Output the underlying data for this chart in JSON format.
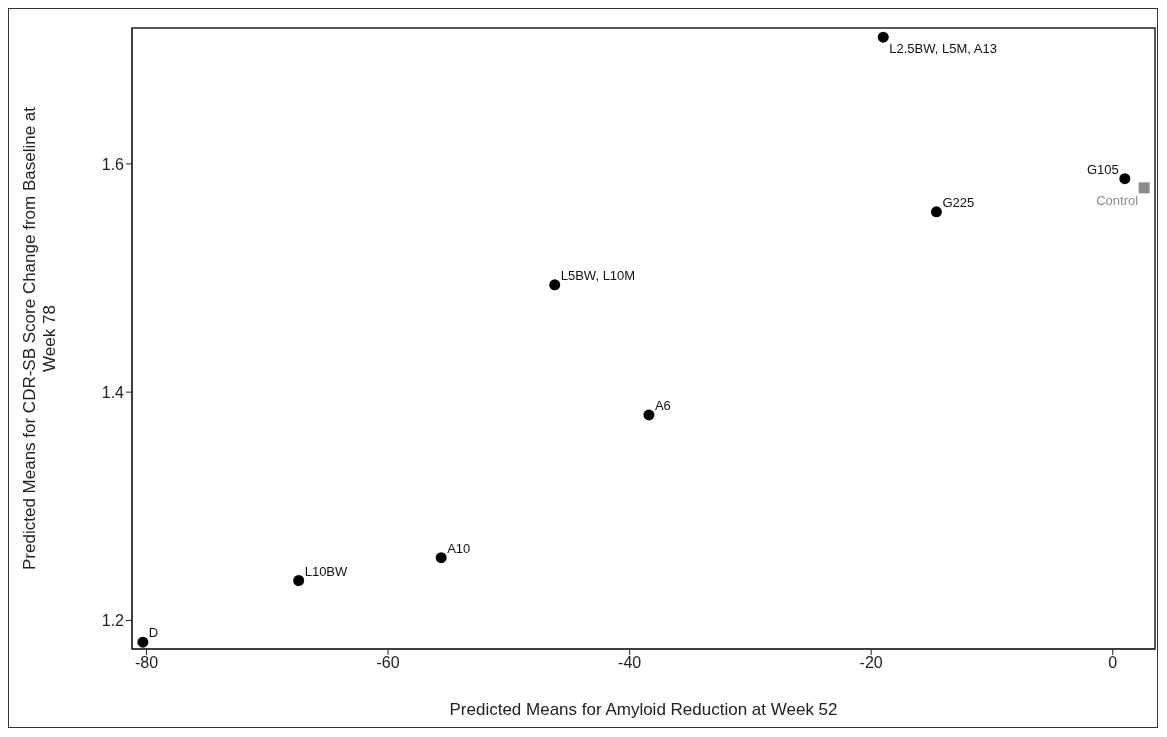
{
  "chart_data": {
    "type": "scatter",
    "xlabel": "Predicted Means for Amyloid Reduction at Week 52",
    "ylabel": "Predicted Means for CDR-SB Score Change from Baseline at Week 78",
    "series": [
      {
        "color": "#000000",
        "marker": "circle",
        "x": [
          -80.3,
          -67.4,
          -55.6,
          -46.2,
          -38.4,
          -19.0,
          -14.6,
          1.0
        ],
        "values": [
          1.181,
          1.235,
          1.255,
          1.494,
          1.38,
          1.711,
          1.558,
          1.587
        ]
      },
      {
        "color": "#8c8c8c",
        "marker": "square",
        "x": [
          2.6
        ],
        "values": [
          1.579
        ]
      }
    ],
    "xlim": [
      -81.2,
      3.5
    ],
    "xticks": [
      -80,
      -60,
      -40,
      -20,
      0
    ],
    "ylim": [
      1.175,
      1.719
    ],
    "yticks": [
      1.2,
      1.4,
      1.6
    ],
    "grid": false,
    "legend": false,
    "annotations": [
      {
        "text": "D",
        "x": -80.3,
        "y": 1.181
      },
      {
        "text": "L10BW",
        "x": -67.4,
        "y": 1.235
      },
      {
        "text": "A10",
        "x": -55.6,
        "y": 1.255
      },
      {
        "text": "L5BW, L10M",
        "x": -46.2,
        "y": 1.494
      },
      {
        "text": "A6",
        "x": -38.4,
        "y": 1.38
      },
      {
        "text": "L2.5BW, L5M, A13",
        "x": -19.0,
        "y": 1.711
      },
      {
        "text": "G225",
        "x": -14.6,
        "y": 1.558
      },
      {
        "text": "G105",
        "x": 1.0,
        "y": 1.587
      },
      {
        "text": "Control",
        "x": 2.6,
        "y": 1.579
      }
    ]
  }
}
